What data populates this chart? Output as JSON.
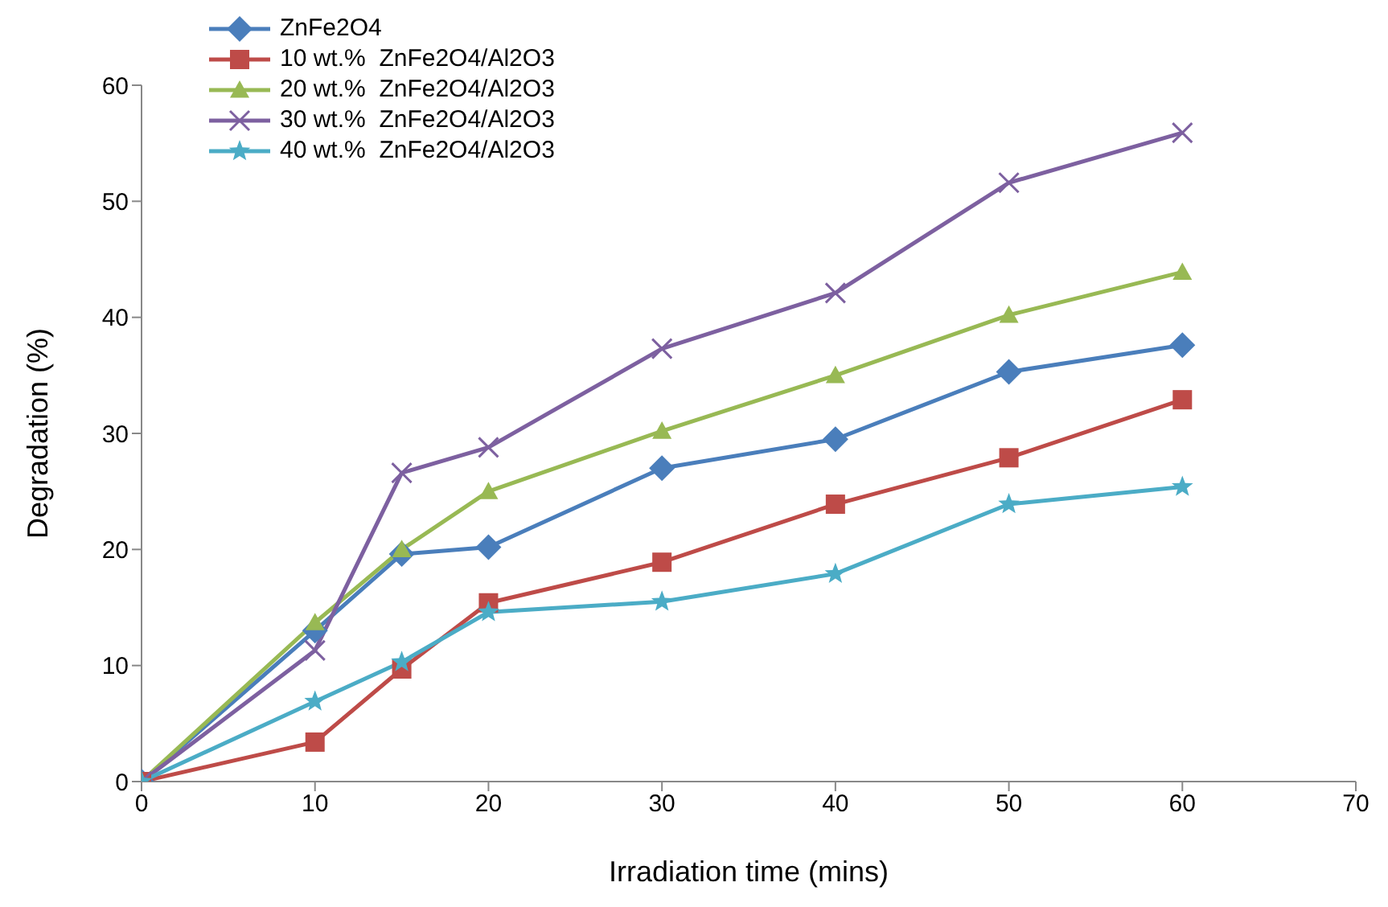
{
  "chart_data": {
    "type": "line",
    "xlabel": "Irradiation time (mins)",
    "ylabel": "Degradation  (%)",
    "x": [
      0,
      10,
      15,
      20,
      30,
      40,
      50,
      60
    ],
    "xlim": [
      0,
      70
    ],
    "xticks": [
      0,
      10,
      20,
      30,
      40,
      50,
      60,
      70
    ],
    "ylim": [
      0,
      60
    ],
    "yticks": [
      0,
      10,
      20,
      30,
      40,
      50,
      60
    ],
    "grid": false,
    "legend": "top left",
    "line_style": "solid",
    "series": [
      {
        "name": "ZnFe2O4",
        "color": "#4a7ebb",
        "marker": "diamond",
        "values": [
          0,
          13,
          19.6,
          20.2,
          27,
          29.5,
          35.3,
          37.6
        ]
      },
      {
        "name": "10 wt.%  ZnFe2O4/Al2O3",
        "color": "#be4b48",
        "marker": "square",
        "values": [
          0,
          3.4,
          9.7,
          15.4,
          18.9,
          23.9,
          27.9,
          32.9
        ]
      },
      {
        "name": "20 wt.%  ZnFe2O4/Al2O3",
        "color": "#98b954",
        "marker": "triangle",
        "values": [
          0,
          13.7,
          20,
          25,
          30.2,
          35,
          40.2,
          43.9
        ]
      },
      {
        "name": "30 wt.%  ZnFe2O4/Al2O3",
        "color": "#7d60a0",
        "marker": "cross",
        "values": [
          0,
          11.3,
          26.6,
          28.8,
          37.3,
          42.1,
          51.6,
          55.9
        ]
      },
      {
        "name": "40 wt.%  ZnFe2O4/Al2O3",
        "color": "#4bacc6",
        "marker": "star",
        "values": [
          0,
          6.9,
          10.3,
          14.6,
          15.5,
          17.9,
          23.9,
          25.4
        ]
      }
    ]
  }
}
